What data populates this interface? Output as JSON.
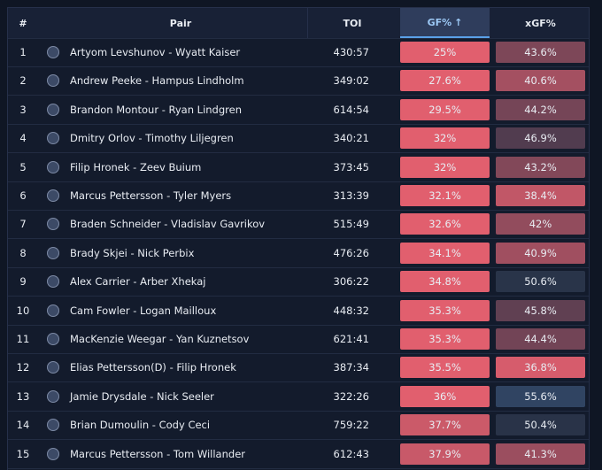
{
  "table": {
    "header": [
      "#",
      "Pair",
      "TOI",
      "GF%",
      "xGF%"
    ],
    "rows": [
      [
        1,
        "Artyom Levshunov - Wyatt Kaiser",
        "430:57",
        "25%",
        "43.6%"
      ],
      [
        2,
        "Andrew Peeke - Hampus Lindholm",
        "349:02",
        "27.6%",
        "40.6%"
      ],
      [
        3,
        "Brandon Montour - Ryan Lindgren",
        "614:54",
        "29.5%",
        "44.2%"
      ],
      [
        4,
        "Dmitry Orlov - Timothy Liljegren",
        "340:21",
        "32%",
        "46.9%"
      ],
      [
        5,
        "Filip Hronek - Zeev Buium",
        "373:45",
        "32%",
        "43.2%"
      ],
      [
        6,
        "Marcus Pettersson - Tyler Myers",
        "313:39",
        "32.1%",
        "38.4%"
      ],
      [
        7,
        "Braden Schneider - Vladislav Gavrikov",
        "515:49",
        "32.6%",
        "42%"
      ],
      [
        8,
        "Brady Skjei - Nick Perbix",
        "476:26",
        "34.1%",
        "40.9%"
      ],
      [
        9,
        "Alex Carrier - Arber Xhekaj",
        "306:22",
        "34.8%",
        "50.6%"
      ],
      [
        10,
        "Cam Fowler - Logan Mailloux",
        "448:32",
        "35.3%",
        "45.8%"
      ],
      [
        11,
        "MacKenzie Weegar - Yan Kuznetsov",
        "621:41",
        "35.3%",
        "44.4%"
      ],
      [
        12,
        "Elias Pettersson(D) - Filip Hronek",
        "387:34",
        "35.5%",
        "36.8%"
      ],
      [
        13,
        "Jamie Drysdale - Nick Seeler",
        "322:26",
        "36%",
        "55.6%"
      ],
      [
        14,
        "Brian Dumoulin - Cody Ceci",
        "759:22",
        "37.7%",
        "50.4%"
      ],
      [
        15,
        "Marcus Pettersson - Tom Willander",
        "612:43",
        "37.9%",
        "41.3%"
      ]
    ]
  }
}
